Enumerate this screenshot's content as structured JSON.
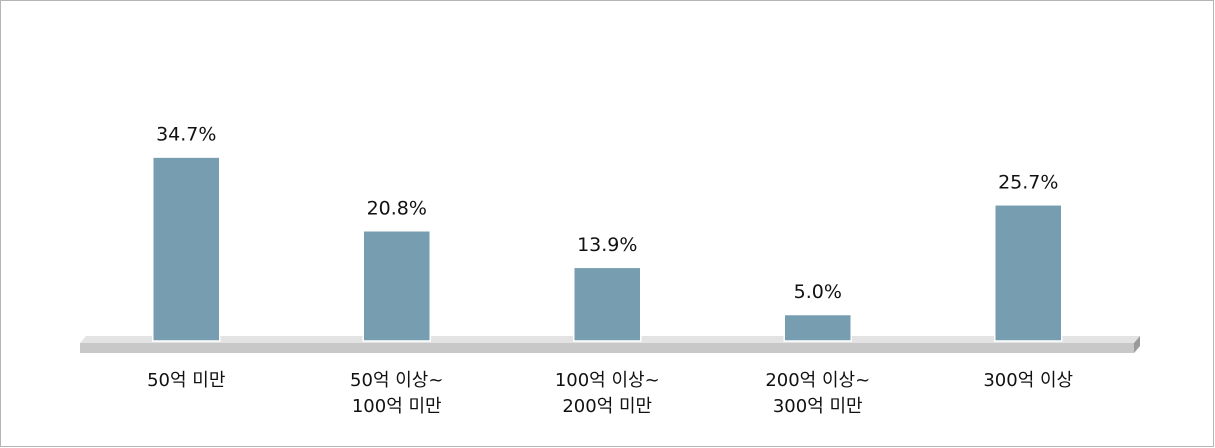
{
  "chart_data": {
    "type": "bar",
    "categories": [
      "50억 미만",
      "50억 이상~\n100억 미만",
      "100억 이상~\n200억 미만",
      "200억 이상~\n300억 미만",
      "300억 이상"
    ],
    "values": [
      34.7,
      20.8,
      13.9,
      5.0,
      25.7
    ],
    "value_labels": [
      "34.7%",
      "20.8%",
      "13.9%",
      "5.0%",
      "25.7%"
    ],
    "color": "#779eb0"
  }
}
